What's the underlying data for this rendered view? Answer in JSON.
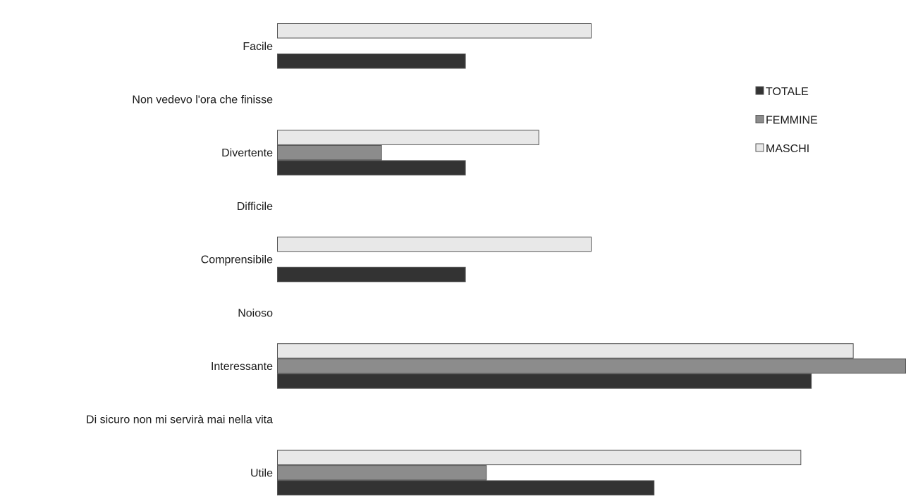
{
  "chart_data": {
    "type": "bar",
    "orientation": "horizontal",
    "categories": [
      "Facile",
      "Non vedevo l'ora che finisse",
      "Divertente",
      "Difficile",
      "Comprensibile",
      "Noioso",
      "Interessante",
      "Di sicuro non mi servirà mai nella vita",
      "Utile"
    ],
    "series": [
      {
        "name": "MASCHI",
        "color": "#e8e8e8",
        "values": [
          15,
          0,
          12.5,
          0,
          15,
          0,
          27.5,
          0,
          25
        ]
      },
      {
        "name": "FEMMINE",
        "color": "#8c8c8c",
        "values": [
          0,
          0,
          5,
          0,
          0,
          0,
          30,
          0,
          10
        ]
      },
      {
        "name": "TOTALE",
        "color": "#333333",
        "values": [
          9,
          0,
          9,
          0,
          9,
          0,
          25.5,
          0,
          18
        ]
      }
    ],
    "legend_order": [
      "TOTALE",
      "FEMMINE",
      "MASCHI"
    ],
    "legend_position": "right",
    "grid": false,
    "xlim": [
      0,
      30
    ]
  }
}
